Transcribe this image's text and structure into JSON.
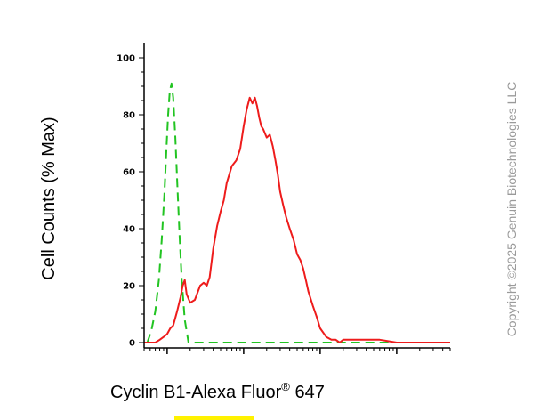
{
  "chart_data": {
    "type": "line",
    "title": "",
    "ylabel": "Cell Counts (% Max)",
    "xlabel": "Cyclin B1-Alexa Fluor",
    "xlabel_superscript": "®",
    "xlabel_suffix": " 647",
    "x_scale": "log",
    "xlim": [
      0.5,
      5000
    ],
    "ylim": [
      0,
      100
    ],
    "yticks": [
      0,
      20,
      40,
      60,
      80,
      100
    ],
    "ytick_labels": [
      "0",
      "20",
      "40",
      "60",
      "80",
      "100"
    ],
    "grid": false,
    "series": [
      {
        "color": "#22c422",
        "dashed": true,
        "x": [
          0.55,
          0.62,
          0.7,
          0.78,
          0.85,
          0.92,
          0.98,
          1.03,
          1.08,
          1.14,
          1.2,
          1.28,
          1.36,
          1.45,
          1.55,
          1.7,
          1.9,
          2.5,
          5,
          20,
          100,
          1000,
          5000
        ],
        "y": [
          0,
          4,
          11,
          22,
          36,
          52,
          68,
          80,
          88,
          91,
          86,
          72,
          55,
          38,
          22,
          8,
          0,
          0,
          0,
          0,
          0,
          0,
          0
        ]
      },
      {
        "color": "#ee1c1c",
        "dashed": false,
        "x": [
          0.5,
          0.6,
          0.7,
          0.8,
          0.9,
          1.0,
          1.1,
          1.2,
          1.35,
          1.5,
          1.6,
          1.7,
          1.8,
          2.0,
          2.3,
          2.7,
          3.0,
          3.3,
          3.6,
          4.0,
          4.5,
          5.0,
          5.5,
          6.0,
          7.0,
          8.0,
          9.0,
          10,
          11,
          12,
          13,
          14,
          15,
          16,
          17,
          18,
          20,
          22,
          24,
          26,
          28,
          30,
          33,
          36,
          40,
          45,
          50,
          55,
          60,
          65,
          70,
          80,
          90,
          100,
          120,
          140,
          160,
          180,
          200,
          250,
          300,
          400,
          600,
          1000,
          2000,
          5000
        ],
        "y": [
          0,
          0,
          0,
          1,
          2,
          3,
          5,
          6,
          11,
          16,
          20,
          22,
          17,
          14,
          15,
          20,
          21,
          20,
          23,
          33,
          41,
          46,
          50,
          56,
          62,
          64,
          68,
          76,
          82,
          86,
          84,
          86,
          83,
          79,
          76,
          75,
          72,
          73,
          69,
          64,
          59,
          53,
          48,
          44,
          40,
          36,
          31,
          29,
          26,
          22,
          18,
          13,
          9,
          5,
          2,
          1,
          1,
          0,
          1,
          1,
          1,
          1,
          1,
          0,
          0,
          0
        ]
      }
    ]
  },
  "copyright": "Copyright ©2025 Genuin Biotechnologies LLC"
}
